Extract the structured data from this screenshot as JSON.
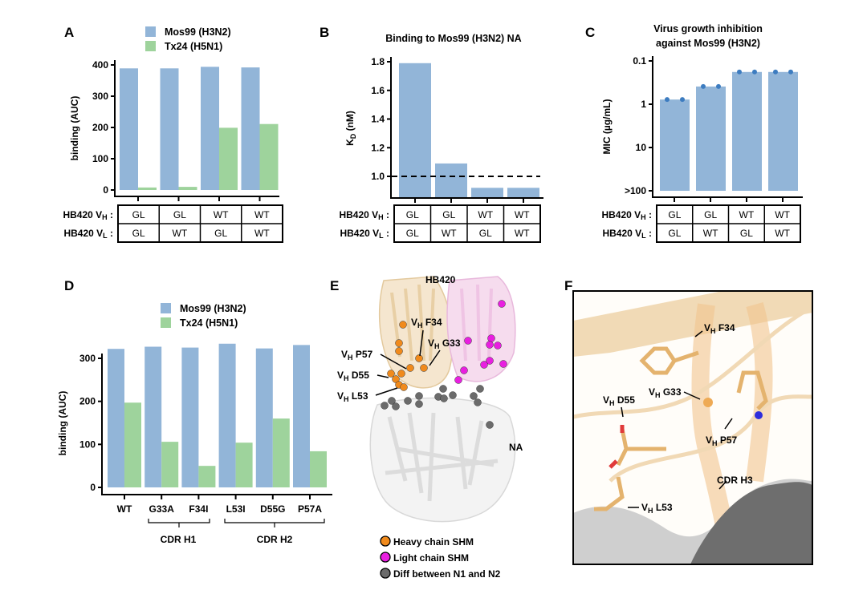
{
  "colors": {
    "mos99": "#92b5d8",
    "tx24": "#9ed39c",
    "heavy": "#f08a1c",
    "light": "#e81fe0",
    "diff": "#6b6b6b",
    "mic_dot": "#3d7cc0"
  },
  "table": {
    "vh_label": {
      "prefix": "HB420 V",
      "sub": "H",
      "suffix": " :"
    },
    "vl_label": {
      "prefix": "HB420 V",
      "sub": "L",
      "suffix": " :"
    },
    "vh": [
      "GL",
      "GL",
      "WT",
      "WT"
    ],
    "vl": [
      "GL",
      "WT",
      "GL",
      "WT"
    ]
  },
  "chart_data": [
    {
      "panel": "A",
      "type": "bar",
      "ylabel": "binding (AUC)",
      "ylim": [
        0,
        400
      ],
      "yticks": [
        "0",
        "100",
        "200",
        "300",
        "400"
      ],
      "legend": "top",
      "categories": [
        "GL/GL",
        "GL/WT",
        "WT/GL",
        "WT/WT"
      ],
      "series": [
        {
          "name": "Mos99 (H3N2)",
          "values": [
            389,
            389,
            394,
            392
          ]
        },
        {
          "name": "Tx24 (H5N1)",
          "values": [
            8,
            10,
            199,
            211
          ]
        }
      ]
    },
    {
      "panel": "B",
      "type": "bar",
      "title": "Binding to Mos99 (H3N2) NA",
      "ylabel": {
        "main": "K",
        "sub": "D",
        "unit": " (nM)"
      },
      "ylim": [
        0.85,
        1.85
      ],
      "yticks": [
        "1.0",
        "1.2",
        "1.4",
        "1.6",
        "1.8"
      ],
      "reference_line": 1.0,
      "categories": [
        "GL/GL",
        "GL/WT",
        "WT/GL",
        "WT/WT"
      ],
      "values": [
        1.79,
        1.09,
        0.92,
        0.92
      ]
    },
    {
      "panel": "C",
      "type": "bar",
      "title": [
        "Virus growth inhibition",
        "against Mos99 (H3N2)"
      ],
      "ylabel": "MIC (µg/mL)",
      "yscale": "log, inverted",
      "ylim": [
        100,
        0.1
      ],
      "yticks": [
        "0.1",
        "1",
        "10",
        ">100"
      ],
      "categories": [
        "GL/GL",
        "GL/WT",
        "WT/GL",
        "WT/WT"
      ],
      "values": [
        0.78,
        0.39,
        0.18,
        0.18
      ],
      "replicates": [
        [
          0.78,
          0.78
        ],
        [
          0.39,
          0.39
        ],
        [
          0.18,
          0.18
        ],
        [
          0.18,
          0.18
        ]
      ]
    },
    {
      "panel": "D",
      "type": "bar",
      "ylabel": "binding (AUC)",
      "ylim": [
        0,
        350
      ],
      "yticks": [
        "0",
        "100",
        "200",
        "300"
      ],
      "legend": "top",
      "categories": [
        "WT",
        "G33A",
        "F34I",
        "L53I",
        "D55G",
        "P57A"
      ],
      "groups": [
        {
          "label": "CDR H1",
          "members": [
            "G33A",
            "F34I"
          ]
        },
        {
          "label": "CDR H2",
          "members": [
            "L53I",
            "D55G",
            "P57A"
          ]
        }
      ],
      "series": [
        {
          "name": "Mos99 (H3N2)",
          "values": [
            322,
            327,
            325,
            334,
            323,
            331
          ]
        },
        {
          "name": "Tx24 (H5N1)",
          "values": [
            197,
            106,
            50,
            104,
            160,
            84
          ]
        }
      ]
    }
  ],
  "panelE": {
    "title": "HB420",
    "na_label": "NA",
    "residues": [
      "F34",
      "G33",
      "P57",
      "D55",
      "L53"
    ],
    "vh_prefix": "V",
    "vh_sub": "H",
    "legend": [
      "Heavy chain SHM",
      "Light chain SHM",
      "Diff between N1 and N2"
    ]
  },
  "panelF": {
    "residues": [
      "F34",
      "G33",
      "D55",
      "P57",
      "L53"
    ],
    "cdr": "CDR H3"
  },
  "panel_labels": [
    "A",
    "B",
    "C",
    "D",
    "E",
    "F"
  ]
}
